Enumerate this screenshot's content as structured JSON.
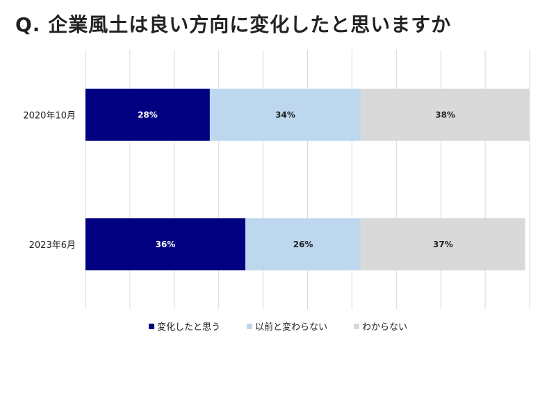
{
  "title": "Q. 企業風土は良い方向に変化したと思いますか",
  "chart_data": {
    "type": "bar",
    "orientation": "horizontal",
    "stacked": true,
    "percent_stacked": true,
    "categories": [
      "2020年10月",
      "2023年6月"
    ],
    "series": [
      {
        "name": "変化したと思う",
        "values": [
          28,
          36
        ],
        "labels": [
          "28%",
          "36%"
        ],
        "color": "#000080"
      },
      {
        "name": "以前と変わらない",
        "values": [
          34,
          26
        ],
        "labels": [
          "34%",
          "26%"
        ],
        "color": "#bdd7ee"
      },
      {
        "name": "わからない",
        "values": [
          38,
          37
        ],
        "labels": [
          "38%",
          "37%"
        ],
        "color": "#d9d9d9"
      }
    ],
    "xlim": [
      0,
      100
    ],
    "grid": true,
    "legend": "bottom"
  }
}
